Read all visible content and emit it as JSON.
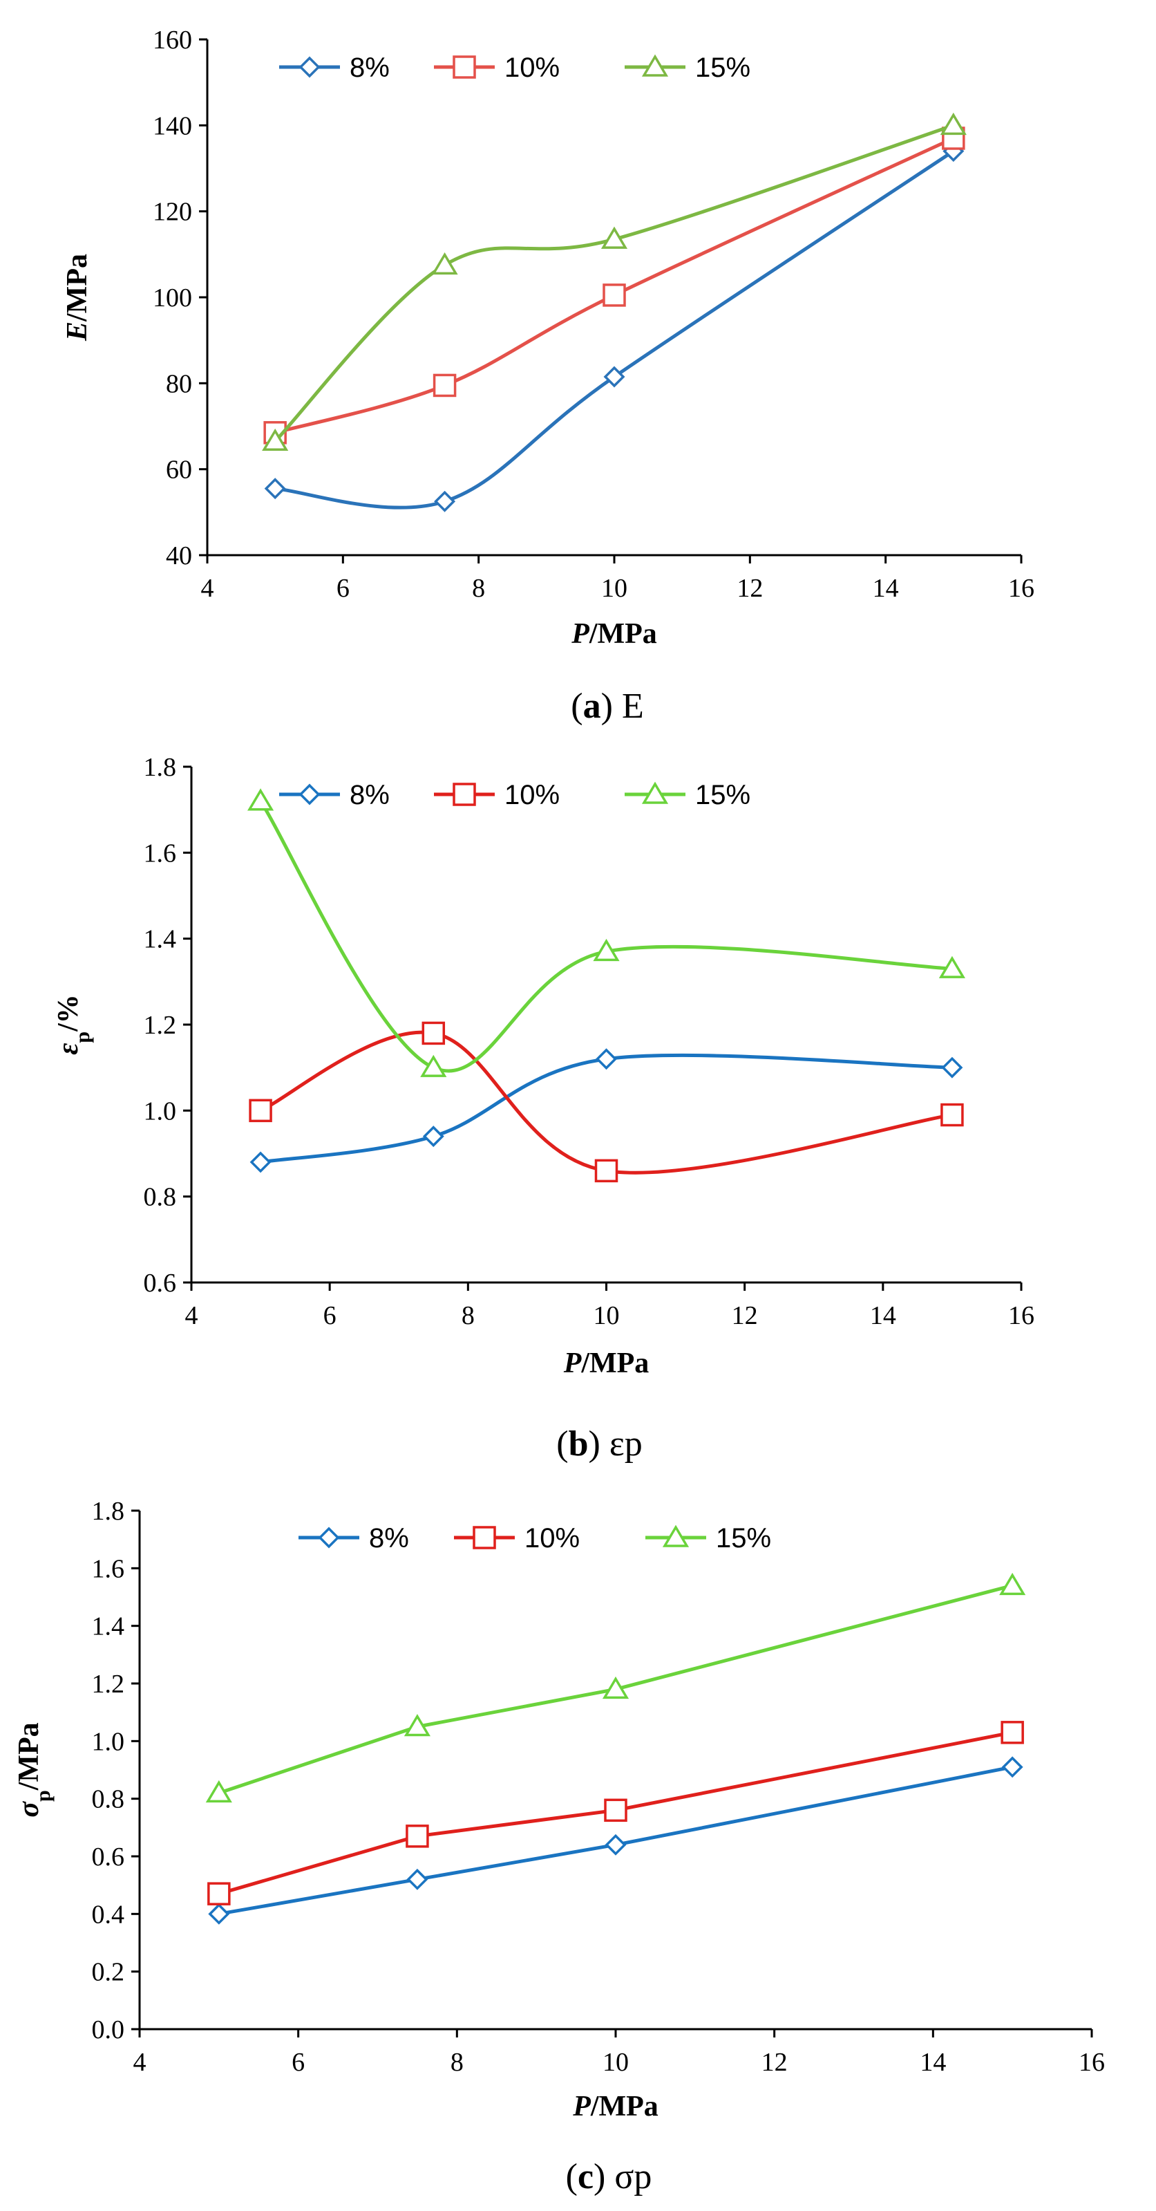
{
  "chart_data": [
    {
      "type": "line",
      "title": "",
      "x": [
        5,
        7.5,
        10,
        15
      ],
      "xlabel_italic": "P",
      "xlabel_rest": "/MPa",
      "ylabel_italic": "E",
      "ylabel_rest": "/MPa",
      "xlim": [
        4,
        16
      ],
      "ylim": [
        40,
        160
      ],
      "xticks": [
        4,
        6,
        8,
        10,
        12,
        14,
        16
      ],
      "yticks": [
        40,
        60,
        80,
        100,
        120,
        140,
        160
      ],
      "ytick_decimals": 0,
      "series": [
        {
          "name": "8%",
          "color": "#2a73b9",
          "marker": "diamond",
          "values": [
            55.5,
            52.5,
            81.5,
            134
          ]
        },
        {
          "name": "10%",
          "color": "#e4514a",
          "marker": "square",
          "values": [
            68.5,
            79.5,
            100.5,
            137
          ]
        },
        {
          "name": "15%",
          "color": "#7db843",
          "marker": "triangle",
          "values": [
            66.5,
            107.5,
            113.5,
            140
          ]
        }
      ],
      "caption": {
        "letter": "a",
        "text": "E"
      }
    },
    {
      "type": "line",
      "title": "",
      "x": [
        5,
        7.5,
        10,
        15
      ],
      "xlabel_italic": "P",
      "xlabel_rest": "/MPa",
      "ylabel_italic": "ε",
      "ylabel_sub": "p",
      "ylabel_rest": "/%",
      "xlim": [
        4,
        16
      ],
      "ylim": [
        0.6,
        1.8
      ],
      "xticks": [
        4,
        6,
        8,
        10,
        12,
        14,
        16
      ],
      "yticks": [
        0.6,
        0.8,
        1.0,
        1.2,
        1.4,
        1.6,
        1.8
      ],
      "ytick_decimals": 1,
      "series": [
        {
          "name": "8%",
          "color": "#1a74c1",
          "marker": "diamond",
          "values": [
            0.88,
            0.94,
            1.12,
            1.1
          ]
        },
        {
          "name": "10%",
          "color": "#e0201c",
          "marker": "square",
          "values": [
            1.0,
            1.18,
            0.86,
            0.99
          ]
        },
        {
          "name": "15%",
          "color": "#6ad33b",
          "marker": "triangle",
          "values": [
            1.72,
            1.1,
            1.37,
            1.33
          ]
        }
      ],
      "caption": {
        "letter": "b",
        "text": "εp"
      }
    },
    {
      "type": "line",
      "title": "",
      "x": [
        5,
        7.5,
        10,
        15
      ],
      "xlabel_italic": "P",
      "xlabel_rest": "/MPa",
      "ylabel_italic": "σ",
      "ylabel_sub": "p",
      "ylabel_rest": "/MPa",
      "xlim": [
        4,
        16
      ],
      "ylim": [
        0.0,
        1.8
      ],
      "xticks": [
        4,
        6,
        8,
        10,
        12,
        14,
        16
      ],
      "yticks": [
        0.0,
        0.2,
        0.4,
        0.6,
        0.8,
        1.0,
        1.2,
        1.4,
        1.6,
        1.8
      ],
      "ytick_decimals": 1,
      "series": [
        {
          "name": "8%",
          "color": "#1a74c1",
          "marker": "diamond",
          "values": [
            0.4,
            0.52,
            0.64,
            0.91
          ]
        },
        {
          "name": "10%",
          "color": "#e0201c",
          "marker": "square",
          "values": [
            0.47,
            0.67,
            0.76,
            1.03
          ]
        },
        {
          "name": "15%",
          "color": "#6ad33b",
          "marker": "triangle",
          "values": [
            0.82,
            1.05,
            1.18,
            1.54
          ]
        }
      ],
      "caption": {
        "letter": "c",
        "text": "σp"
      }
    }
  ]
}
